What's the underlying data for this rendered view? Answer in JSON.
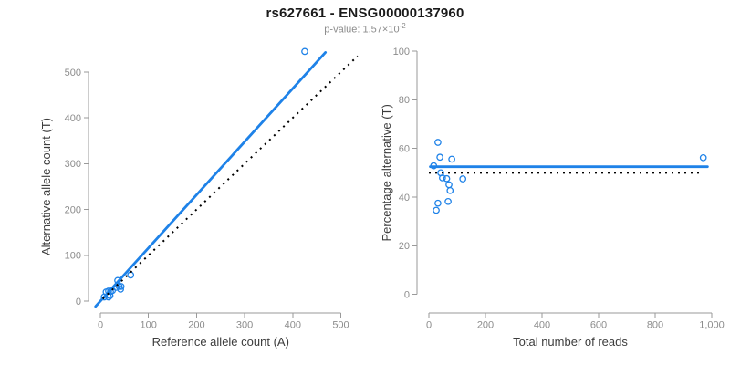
{
  "header": {
    "title": "rs627661 - ENSG00000137960",
    "p_value_base": "p-value: 1.57×10",
    "p_value_exponent": "-2"
  },
  "colors": {
    "accent_blue": "#1E82E8",
    "dotted_black": "#000000",
    "axis_line_gray": "#9A9A9A",
    "tick_label_gray": "#8C8C8C",
    "axis_title_dark": "#3C3C3C"
  },
  "chart_data": [
    {
      "type": "scatter",
      "panel": "left",
      "xlabel": "Reference allele count (A)",
      "ylabel": "Alternative allele count (T)",
      "xlim": [
        0,
        500
      ],
      "ylim": [
        0,
        500
      ],
      "xticks": [
        0,
        100,
        200,
        300,
        400,
        500
      ],
      "xtick_labels": [
        "0",
        "100",
        "200",
        "300",
        "400",
        "500"
      ],
      "yticks": [
        0,
        100,
        200,
        300,
        400,
        500
      ],
      "ytick_labels": [
        "0",
        "100",
        "200",
        "300",
        "400",
        "500"
      ],
      "grid": false,
      "points_style": "open-circle-blue",
      "points": [
        [
          12,
          20
        ],
        [
          17,
          22
        ],
        [
          36,
          45
        ],
        [
          8,
          9
        ],
        [
          21,
          21
        ],
        [
          25,
          23
        ],
        [
          33,
          30
        ],
        [
          63,
          57
        ],
        [
          39,
          32
        ],
        [
          43,
          32
        ],
        [
          42,
          26
        ],
        [
          20,
          12
        ],
        [
          17,
          9
        ],
        [
          425,
          545
        ]
      ],
      "lines": [
        {
          "name": "fit-line",
          "style": "solid",
          "color": "blue",
          "slope": 1.16,
          "intercept": 0,
          "x_range": [
            -10,
            468
          ]
        },
        {
          "name": "identity-line",
          "style": "dotted",
          "color": "black",
          "slope": 1,
          "intercept": 0,
          "x_range": [
            5,
            535
          ]
        }
      ]
    },
    {
      "type": "scatter",
      "panel": "right",
      "xlabel": "Total number of reads",
      "ylabel": "Percentage alternative (T)",
      "xlim": [
        0,
        1000
      ],
      "ylim": [
        0,
        100
      ],
      "xticks": [
        0,
        200,
        400,
        600,
        800,
        1000
      ],
      "xtick_labels": [
        "0",
        "200",
        "400",
        "600",
        "800",
        "1,000"
      ],
      "yticks": [
        0,
        20,
        40,
        60,
        80,
        100
      ],
      "ytick_labels": [
        "0",
        "20",
        "40",
        "60",
        "80",
        "100"
      ],
      "grid": false,
      "points_style": "open-circle-blue",
      "points": [
        [
          32,
          62.5
        ],
        [
          39,
          56.4
        ],
        [
          81,
          55.6
        ],
        [
          17,
          52.9
        ],
        [
          42,
          50.0
        ],
        [
          48,
          47.9
        ],
        [
          63,
          47.6
        ],
        [
          120,
          47.5
        ],
        [
          71,
          45.1
        ],
        [
          75,
          42.7
        ],
        [
          68,
          38.2
        ],
        [
          32,
          37.5
        ],
        [
          26,
          34.6
        ],
        [
          970,
          56.2
        ]
      ],
      "lines": [
        {
          "name": "mean-line",
          "style": "solid",
          "color": "blue",
          "slope": 0,
          "intercept": 52.5,
          "x_range": [
            5,
            985
          ]
        },
        {
          "name": "null-line",
          "style": "dotted",
          "color": "black",
          "slope": 0,
          "intercept": 50,
          "x_range": [
            0,
            955
          ]
        }
      ]
    }
  ]
}
